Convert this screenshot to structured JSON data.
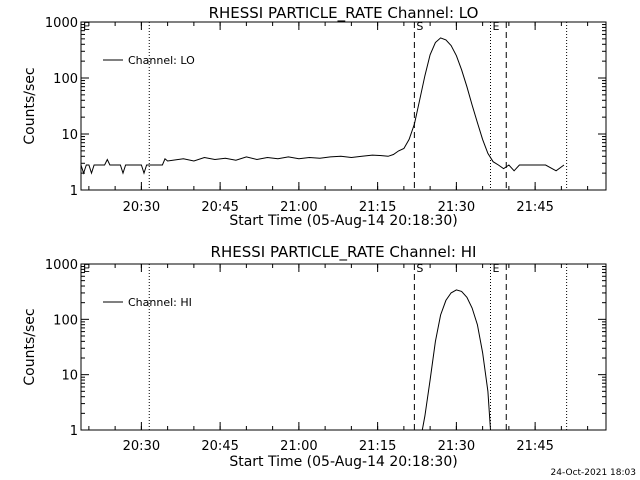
{
  "timestamp": "24-Oct-2021 18:03",
  "chart_data": [
    {
      "type": "line",
      "title": "RHESSI PARTICLE_RATE Channel: LO",
      "xlabel": "Start Time (05-Aug-14 20:18:30)",
      "ylabel": "Counts/sec",
      "yscale": "log",
      "ylim": [
        1,
        1000
      ],
      "xlim": [
        "20:18:30",
        "21:58:30"
      ],
      "x_ticks": [
        "20:30",
        "20:45",
        "21:00",
        "21:15",
        "21:30",
        "21:45"
      ],
      "y_ticks": [
        "1",
        "10",
        "100",
        "1000"
      ],
      "legend": {
        "label": "Channel: LO",
        "position": "top-left"
      },
      "markers": [
        {
          "time": "20:31:30",
          "style": "dotted",
          "label": ""
        },
        {
          "time": "21:22:00",
          "style": "dashed",
          "label": "S"
        },
        {
          "time": "21:36:30",
          "style": "dotted",
          "label": "E"
        },
        {
          "time": "21:39:30",
          "style": "dashed",
          "label": ""
        },
        {
          "time": "21:51:00",
          "style": "dotted",
          "label": ""
        },
        {
          "time": "20:18:30",
          "style": "none",
          "label": "E"
        }
      ],
      "series": [
        {
          "x": [
            "20:18:30",
            "20:19:00",
            "20:19:30",
            "20:20:00",
            "20:20:30",
            "20:21:00",
            "20:22:00",
            "20:23:00",
            "20:23:30",
            "20:24:00",
            "20:25:00",
            "20:26:00",
            "20:26:30",
            "20:27:00",
            "20:28:00",
            "20:29:00",
            "20:30:00",
            "20:30:30",
            "20:31:00",
            "20:32:00",
            "20:33:00",
            "20:34:00",
            "20:34:30",
            "20:35:00",
            "20:38:00",
            "20:40:00",
            "20:42:00",
            "20:44:00",
            "20:46:00",
            "20:48:00",
            "20:50:00",
            "20:52:00",
            "20:54:00",
            "20:56:00",
            "20:58:00",
            "21:00:00",
            "21:02:00",
            "21:04:00",
            "21:06:00",
            "21:08:00",
            "21:10:00",
            "21:12:00",
            "21:14:00",
            "21:16:00",
            "21:17:00",
            "21:18:00",
            "21:19:00",
            "21:20:00",
            "21:21:00",
            "21:22:00",
            "21:23:00",
            "21:24:00",
            "21:25:00",
            "21:26:00",
            "21:27:00",
            "21:28:00",
            "21:29:00",
            "21:30:00",
            "21:31:00",
            "21:32:00",
            "21:33:00",
            "21:34:00",
            "21:35:00",
            "21:36:00",
            "21:37:00",
            "21:38:00",
            "21:39:00",
            "21:40:00",
            "21:41:00",
            "21:42:00",
            "21:43:00",
            "21:45:00",
            "21:47:00",
            "21:49:00",
            "21:50:30"
          ],
          "values": [
            2.8,
            2.0,
            2.8,
            2.8,
            2.0,
            2.8,
            2.8,
            2.8,
            3.5,
            2.8,
            2.8,
            2.8,
            2.0,
            2.8,
            2.8,
            2.8,
            2.8,
            2.0,
            2.8,
            2.8,
            2.8,
            2.8,
            3.6,
            3.3,
            3.6,
            3.3,
            3.8,
            3.5,
            3.7,
            3.4,
            3.9,
            3.5,
            3.8,
            3.6,
            3.9,
            3.6,
            3.8,
            3.7,
            3.9,
            4.0,
            3.8,
            4.0,
            4.2,
            4.1,
            4.0,
            4.3,
            5.0,
            5.5,
            8.0,
            15,
            40,
            110,
            260,
            430,
            520,
            480,
            380,
            250,
            140,
            70,
            33,
            16,
            8,
            4.5,
            3.2,
            2.8,
            2.4,
            2.8,
            2.2,
            2.8,
            2.8,
            2.8,
            2.8,
            2.2,
            2.8
          ]
        }
      ]
    },
    {
      "type": "line",
      "title": "RHESSI PARTICLE_RATE Channel: HI",
      "xlabel": "Start Time (05-Aug-14 20:18:30)",
      "ylabel": "Counts/sec",
      "yscale": "log",
      "ylim": [
        1,
        1000
      ],
      "xlim": [
        "20:18:30",
        "21:58:30"
      ],
      "x_ticks": [
        "20:30",
        "20:45",
        "21:00",
        "21:15",
        "21:30",
        "21:45"
      ],
      "y_ticks": [
        "1",
        "10",
        "100",
        "1000"
      ],
      "legend": {
        "label": "Channel: HI",
        "position": "top-left"
      },
      "markers": [
        {
          "time": "20:31:30",
          "style": "dotted",
          "label": ""
        },
        {
          "time": "21:22:00",
          "style": "dashed",
          "label": "S"
        },
        {
          "time": "21:36:30",
          "style": "dotted",
          "label": "E"
        },
        {
          "time": "21:39:30",
          "style": "dashed",
          "label": ""
        },
        {
          "time": "21:51:00",
          "style": "dotted",
          "label": ""
        },
        {
          "time": "20:18:30",
          "style": "none",
          "label": "E"
        }
      ],
      "series": [
        {
          "x": [
            "21:23:30",
            "21:24:00",
            "21:25:00",
            "21:26:00",
            "21:27:00",
            "21:28:00",
            "21:29:00",
            "21:30:00",
            "21:31:00",
            "21:32:00",
            "21:33:00",
            "21:34:00",
            "21:35:00",
            "21:36:00",
            "21:36:30"
          ],
          "values": [
            1.0,
            1.8,
            8,
            40,
            120,
            220,
            300,
            340,
            320,
            250,
            160,
            80,
            25,
            5,
            1.0
          ]
        }
      ]
    }
  ]
}
